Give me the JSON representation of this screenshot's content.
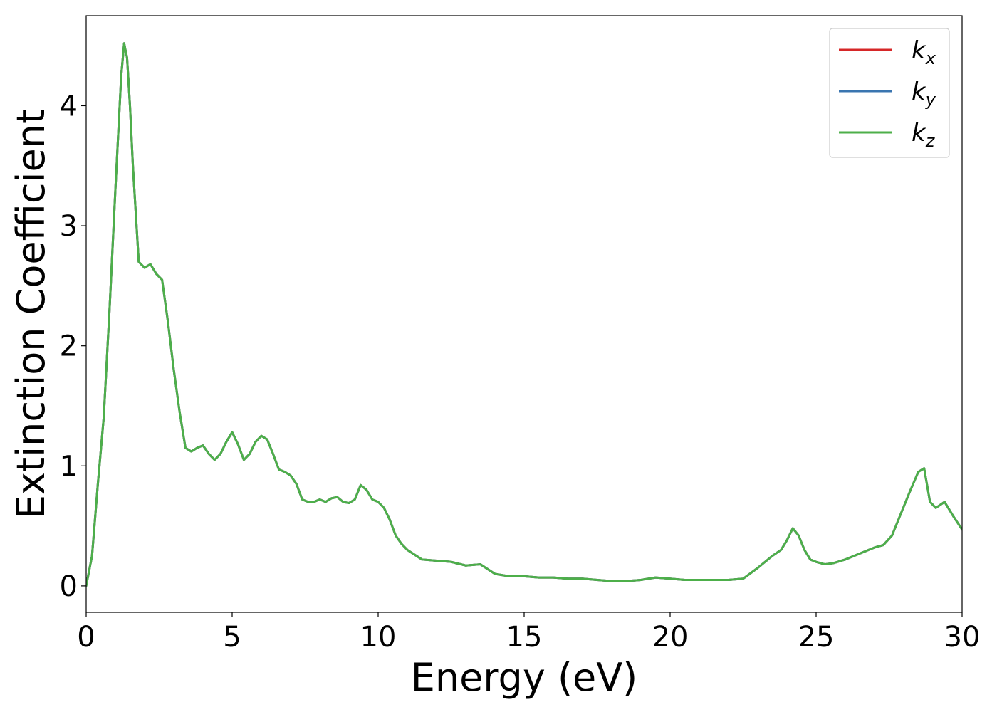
{
  "chart_data": {
    "type": "line",
    "xlabel": "Energy (eV)",
    "ylabel": "Extinction Coefficient",
    "xlim": [
      0,
      30
    ],
    "ylim": [
      -0.22,
      4.75
    ],
    "xticks": [
      0,
      5,
      10,
      15,
      20,
      25,
      30
    ],
    "yticks": [
      0,
      1,
      2,
      3,
      4
    ],
    "grid": false,
    "legend_position": "top-right",
    "colors": {
      "k_x": "#d62728",
      "k_y": "#3a75b0",
      "k_z": "#4daf4a"
    },
    "series": [
      {
        "name": "k_x",
        "label_base": "k",
        "label_sub": "x",
        "color": "#d62728"
      },
      {
        "name": "k_y",
        "label_base": "k",
        "label_sub": "y",
        "color": "#3a75b0"
      },
      {
        "name": "k_z",
        "label_base": "k",
        "label_sub": "z",
        "color": "#4daf4a"
      }
    ],
    "x": [
      0,
      0.2,
      0.4,
      0.6,
      0.8,
      1.0,
      1.2,
      1.3,
      1.4,
      1.5,
      1.6,
      1.8,
      2.0,
      2.2,
      2.4,
      2.6,
      2.8,
      3.0,
      3.2,
      3.4,
      3.6,
      3.8,
      4.0,
      4.2,
      4.4,
      4.6,
      4.8,
      5.0,
      5.2,
      5.4,
      5.6,
      5.8,
      6.0,
      6.2,
      6.4,
      6.6,
      6.8,
      7.0,
      7.2,
      7.4,
      7.6,
      7.8,
      8.0,
      8.2,
      8.4,
      8.6,
      8.8,
      9.0,
      9.2,
      9.4,
      9.6,
      9.8,
      10.0,
      10.2,
      10.4,
      10.6,
      10.8,
      11.0,
      11.5,
      12.0,
      12.5,
      13.0,
      13.5,
      14.0,
      14.5,
      15.0,
      15.5,
      16.0,
      16.5,
      17.0,
      17.5,
      18.0,
      18.5,
      19.0,
      19.5,
      20.0,
      20.5,
      21.0,
      21.5,
      22.0,
      22.5,
      23.0,
      23.5,
      23.8,
      24.0,
      24.2,
      24.4,
      24.6,
      24.8,
      25.0,
      25.3,
      25.6,
      26.0,
      26.5,
      27.0,
      27.3,
      27.6,
      27.9,
      28.2,
      28.5,
      28.7,
      28.9,
      29.1,
      29.4,
      29.7,
      30.0
    ],
    "y": [
      0.0,
      0.25,
      0.85,
      1.4,
      2.3,
      3.3,
      4.25,
      4.52,
      4.4,
      4.0,
      3.5,
      2.7,
      2.65,
      2.68,
      2.6,
      2.55,
      2.2,
      1.8,
      1.45,
      1.15,
      1.12,
      1.15,
      1.17,
      1.1,
      1.05,
      1.1,
      1.2,
      1.28,
      1.18,
      1.05,
      1.1,
      1.2,
      1.25,
      1.22,
      1.1,
      0.97,
      0.95,
      0.92,
      0.85,
      0.72,
      0.7,
      0.7,
      0.72,
      0.7,
      0.73,
      0.74,
      0.7,
      0.69,
      0.72,
      0.84,
      0.8,
      0.72,
      0.7,
      0.65,
      0.55,
      0.42,
      0.35,
      0.3,
      0.22,
      0.21,
      0.2,
      0.17,
      0.18,
      0.1,
      0.08,
      0.08,
      0.07,
      0.07,
      0.06,
      0.06,
      0.05,
      0.04,
      0.04,
      0.05,
      0.07,
      0.06,
      0.05,
      0.05,
      0.05,
      0.05,
      0.06,
      0.15,
      0.25,
      0.3,
      0.38,
      0.48,
      0.42,
      0.3,
      0.22,
      0.2,
      0.18,
      0.19,
      0.22,
      0.27,
      0.32,
      0.34,
      0.42,
      0.6,
      0.78,
      0.95,
      0.98,
      0.7,
      0.65,
      0.7,
      0.58,
      0.47
    ]
  }
}
